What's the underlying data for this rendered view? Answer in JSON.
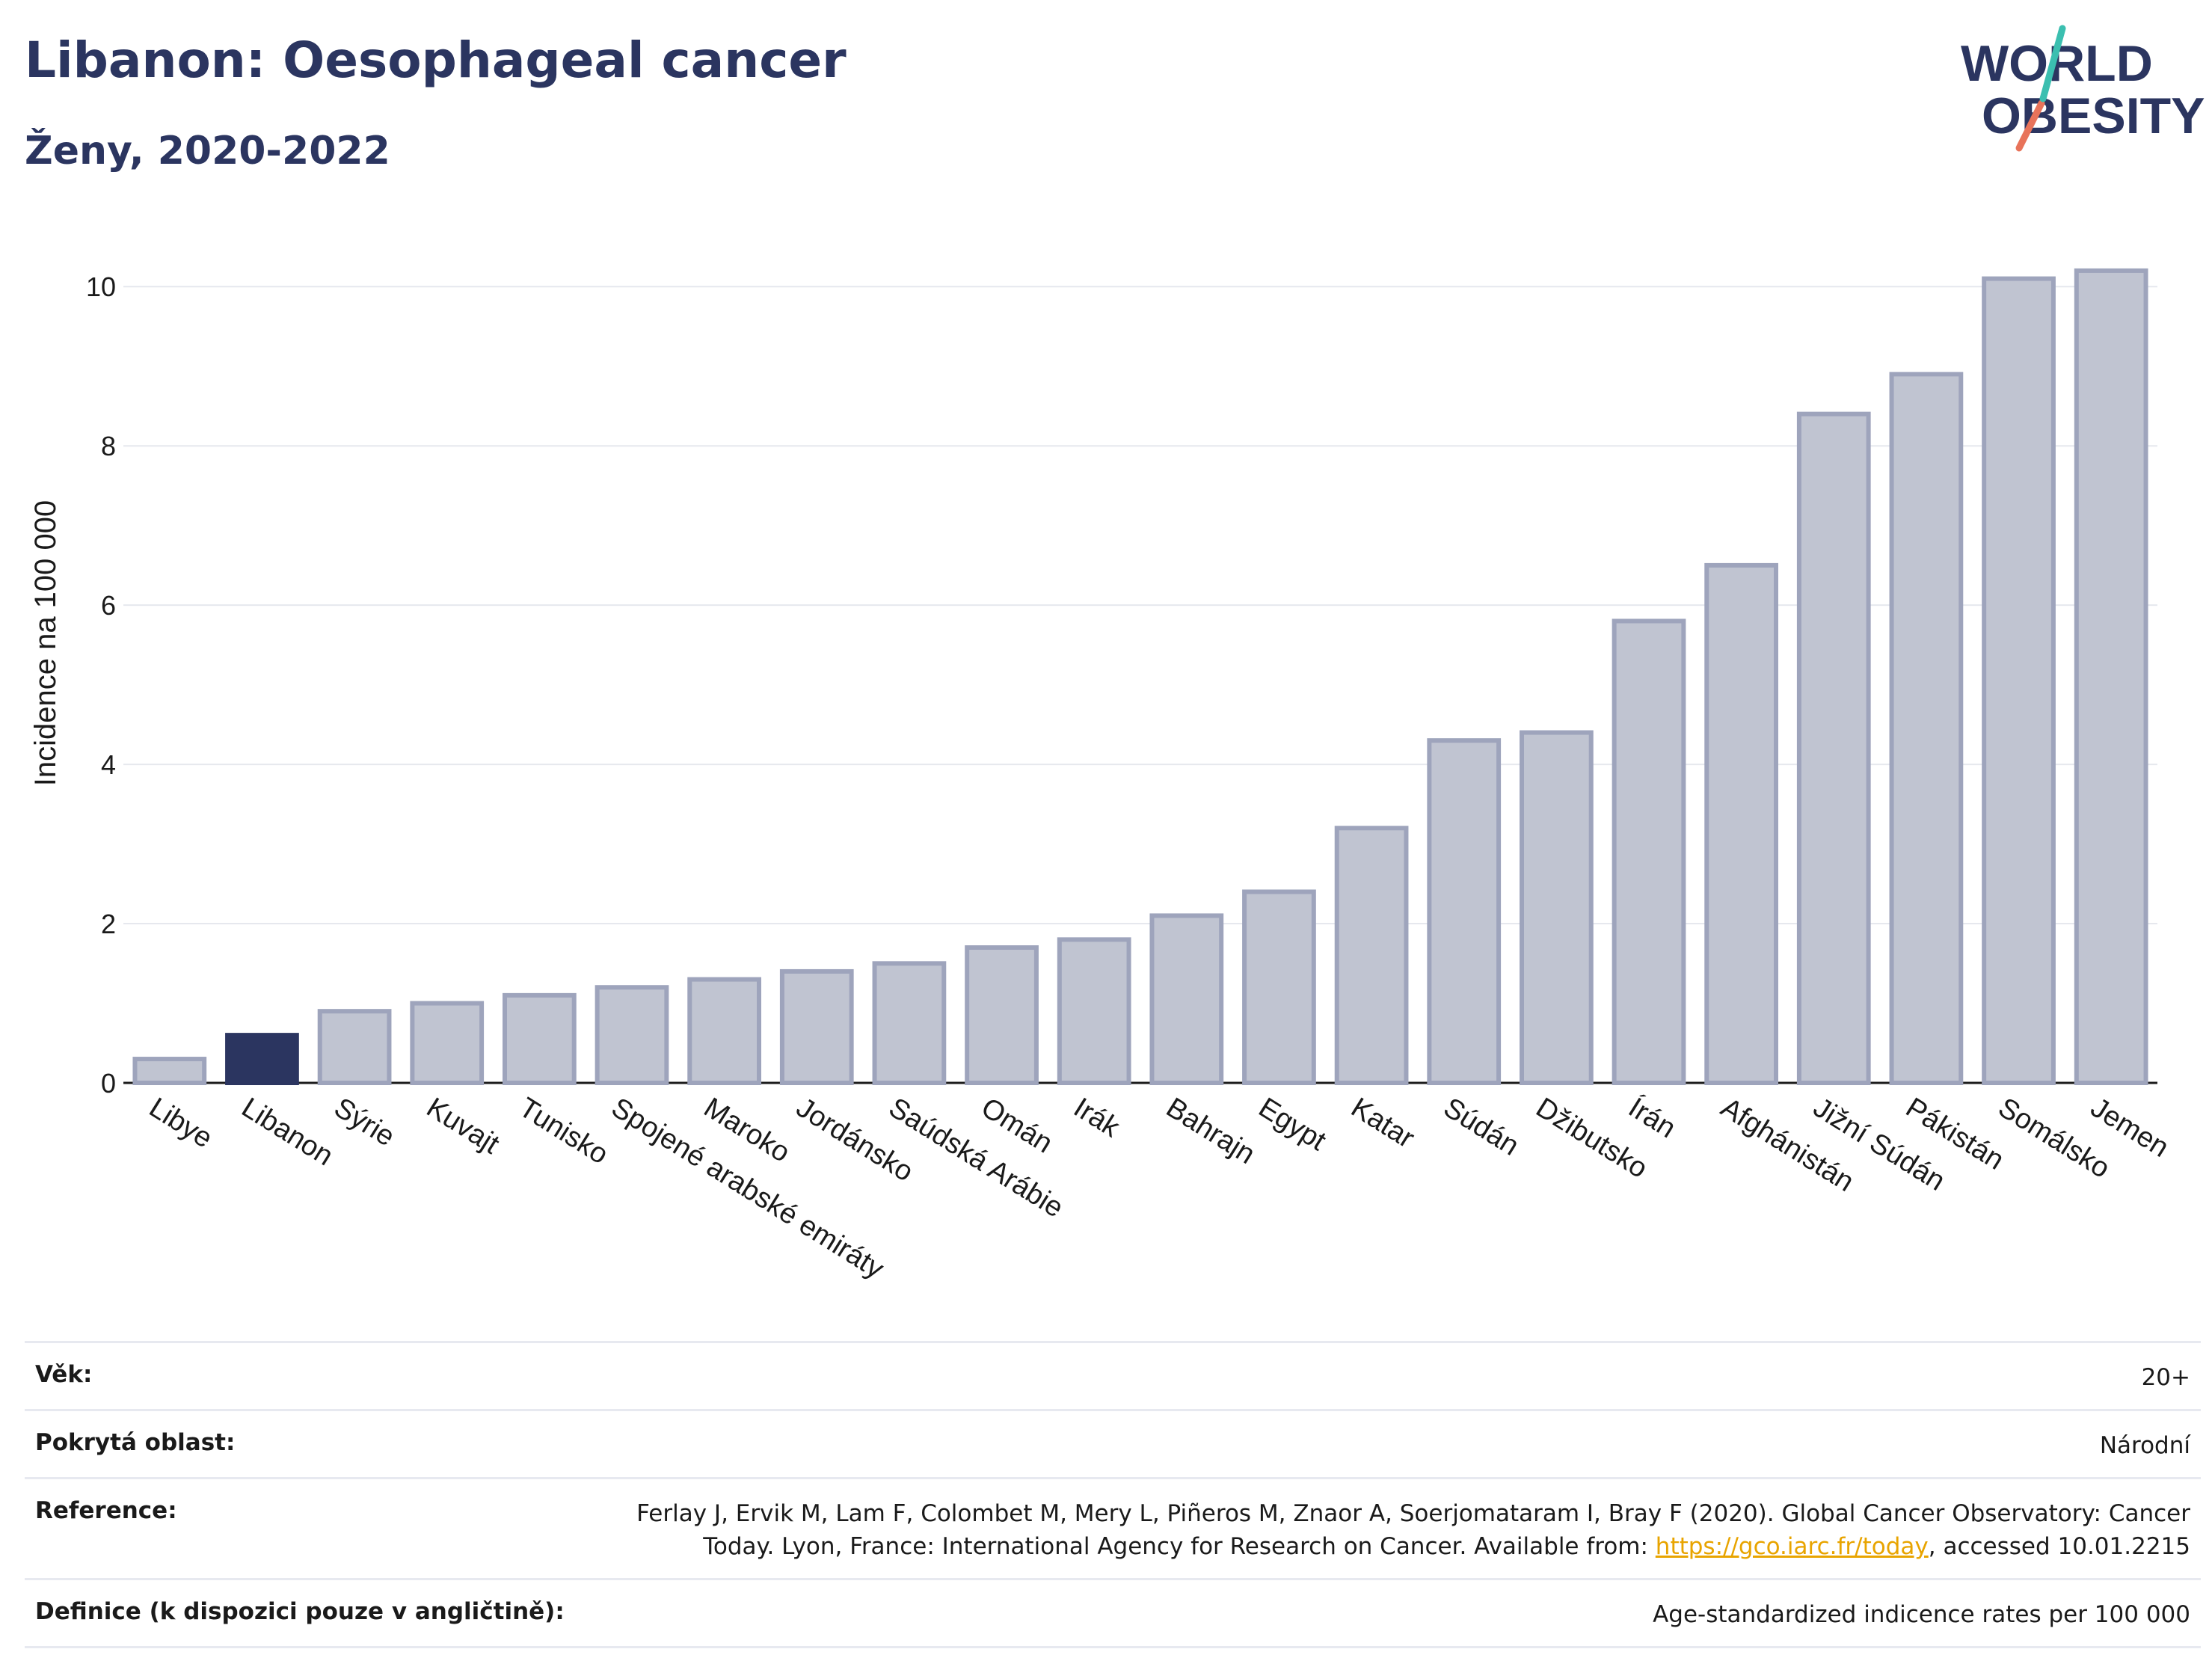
{
  "header": {
    "title": "Libanon: Oesophageal cancer",
    "subtitle": "Ženy, 2020-2022",
    "logo_line1": "WORLD",
    "logo_line2": "OBESITY"
  },
  "chart_data": {
    "type": "bar",
    "title": "Libanon: Oesophageal cancer",
    "subtitle": "Ženy, 2020-2022",
    "ylabel": "Incidence na 100 000",
    "xlabel": "",
    "ylim": [
      0,
      10.5
    ],
    "yticks": [
      0,
      2,
      4,
      6,
      8,
      10
    ],
    "grid": true,
    "categories": [
      "Libye",
      "Libanon",
      "Sýrie",
      "Kuvajt",
      "Tunisko",
      "Spojené arabské emiráty",
      "Maroko",
      "Jordánsko",
      "Saúdská Arábie",
      "Omán",
      "Irák",
      "Bahrajn",
      "Egypt",
      "Katar",
      "Súdán",
      "Džibutsko",
      "Írán",
      "Afghánistán",
      "Jižní Súdán",
      "Pákistán",
      "Somálsko",
      "Jemen"
    ],
    "values": [
      0.3,
      0.6,
      0.9,
      1.0,
      1.1,
      1.2,
      1.3,
      1.4,
      1.5,
      1.7,
      1.8,
      2.1,
      2.4,
      3.2,
      4.3,
      4.4,
      5.8,
      6.5,
      8.4,
      8.9,
      10.1,
      10.2
    ],
    "highlight": "Libanon",
    "colors": {
      "highlight": "#2b3560",
      "bar_fill": "#c0c4d1",
      "bar_stroke": "#9ea4bc",
      "grid": "#e6e8ee"
    }
  },
  "meta": {
    "age_label": "Věk:",
    "age_value": "20+",
    "area_label": "Pokrytá oblast:",
    "area_value": "Národní",
    "reference_label": "Reference:",
    "reference_text": "Ferlay J, Ervik M, Lam F, Colombet M, Mery L, Piñeros M, Znaor A, Soerjomataram I, Bray F (2020). Global Cancer Observatory: Cancer Today. Lyon, France: International Agency for Research on Cancer. Available from: ",
    "reference_link": "https://gco.iarc.fr/today",
    "reference_suffix": ", accessed 10.01.2215",
    "definition_label": "Definice (k dispozici pouze v angličtině):",
    "definition_value": "Age-standardized indicence rates per 100 000"
  }
}
